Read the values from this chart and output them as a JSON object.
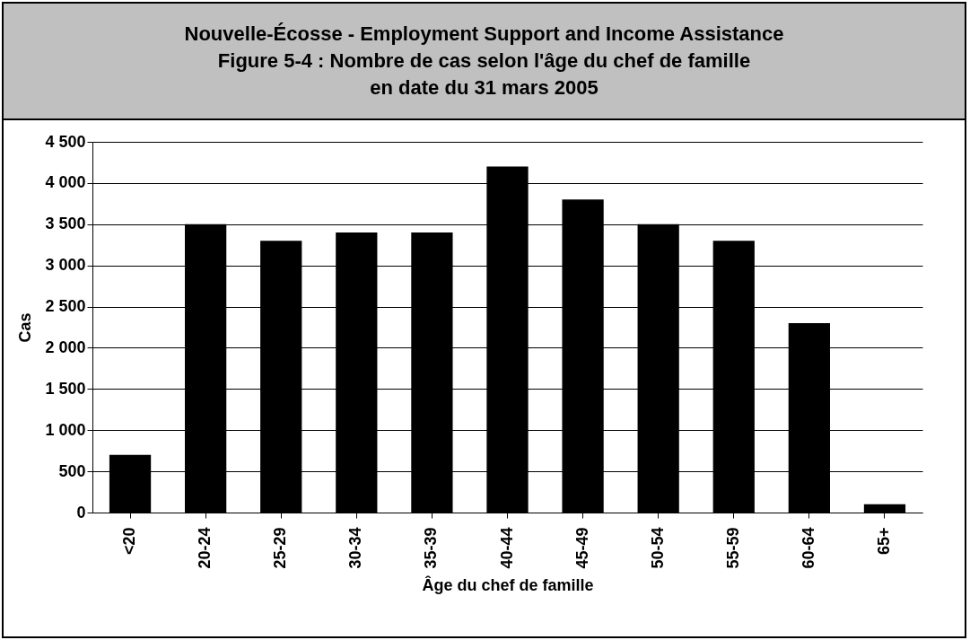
{
  "chart_data": {
    "type": "bar",
    "title": "Nouvelle-Écosse - Employment Support and Income Assistance\nFigure 5-4 : Nombre de cas selon l'âge du chef de famille\nen date du 31 mars 2005",
    "categories": [
      "<20",
      "20-24",
      "25-29",
      "30-34",
      "35-39",
      "40-44",
      "45-49",
      "50-54",
      "55-59",
      "60-64",
      "65+"
    ],
    "values": [
      700,
      3500,
      3300,
      3400,
      3400,
      4200,
      3800,
      3500,
      3300,
      2300,
      100
    ],
    "color": "#000000",
    "xlabel": "Âge du chef de famille",
    "ylabel": "Cas",
    "ylim": [
      0,
      4500
    ],
    "yticks": [
      0,
      500,
      {
        "value": 1000,
        "label": "1 000"
      },
      {
        "value": 1500,
        "label": "1 500"
      },
      {
        "value": 2000,
        "label": "2 000"
      },
      {
        "value": 2500,
        "label": "2 500"
      },
      {
        "value": 3000,
        "label": "3 000"
      },
      {
        "value": 3500,
        "label": "3 500"
      },
      {
        "value": 4000,
        "label": "4 000"
      },
      {
        "value": 4500,
        "label": "4 500"
      }
    ],
    "grid": "y"
  }
}
